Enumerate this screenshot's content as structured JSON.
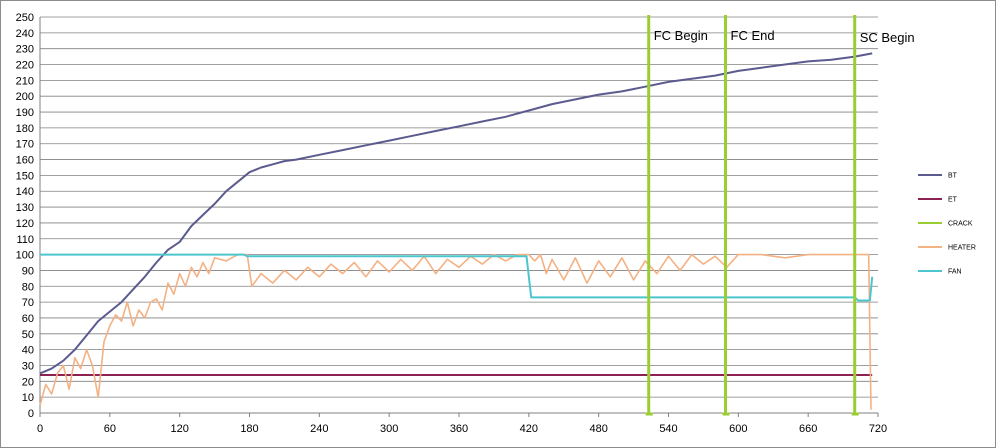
{
  "chart_data": {
    "type": "line",
    "xlim": [
      0,
      720
    ],
    "ylim": [
      0,
      250
    ],
    "x_ticks": [
      0,
      60,
      120,
      180,
      240,
      300,
      360,
      420,
      480,
      540,
      600,
      660,
      720
    ],
    "y_ticks": [
      0,
      10,
      20,
      30,
      40,
      50,
      60,
      70,
      80,
      90,
      100,
      110,
      120,
      130,
      140,
      150,
      160,
      170,
      180,
      190,
      200,
      210,
      220,
      230,
      240,
      250
    ],
    "grid": "horizontal",
    "legend_position": "right",
    "series": [
      {
        "name": "BT",
        "color": "#5b5b8f",
        "points": [
          [
            0,
            25
          ],
          [
            10,
            28
          ],
          [
            20,
            33
          ],
          [
            30,
            40
          ],
          [
            40,
            49
          ],
          [
            50,
            58
          ],
          [
            60,
            64
          ],
          [
            70,
            70
          ],
          [
            80,
            78
          ],
          [
            90,
            86
          ],
          [
            100,
            95
          ],
          [
            110,
            103
          ],
          [
            120,
            108
          ],
          [
            130,
            118
          ],
          [
            140,
            125
          ],
          [
            150,
            132
          ],
          [
            160,
            140
          ],
          [
            170,
            146
          ],
          [
            180,
            152
          ],
          [
            190,
            155
          ],
          [
            200,
            157
          ],
          [
            210,
            159
          ],
          [
            220,
            160
          ],
          [
            240,
            163
          ],
          [
            260,
            166
          ],
          [
            280,
            169
          ],
          [
            300,
            172
          ],
          [
            320,
            175
          ],
          [
            340,
            178
          ],
          [
            360,
            181
          ],
          [
            380,
            184
          ],
          [
            400,
            187
          ],
          [
            420,
            191
          ],
          [
            440,
            195
          ],
          [
            460,
            198
          ],
          [
            480,
            201
          ],
          [
            500,
            203
          ],
          [
            520,
            206
          ],
          [
            540,
            209
          ],
          [
            560,
            211
          ],
          [
            580,
            213
          ],
          [
            600,
            216
          ],
          [
            620,
            218
          ],
          [
            640,
            220
          ],
          [
            660,
            222
          ],
          [
            680,
            223
          ],
          [
            700,
            225
          ],
          [
            715,
            227
          ]
        ]
      },
      {
        "name": "ET",
        "color": "#8b2252",
        "points": [
          [
            0,
            24
          ],
          [
            100,
            24
          ],
          [
            200,
            24
          ],
          [
            300,
            24
          ],
          [
            400,
            24
          ],
          [
            500,
            24
          ],
          [
            600,
            24
          ],
          [
            715,
            24
          ]
        ]
      },
      {
        "name": "CRACK",
        "color": "#9acd32",
        "markers": [
          {
            "x": 523,
            "label": "FC Begin"
          },
          {
            "x": 589,
            "label": "FC End"
          },
          {
            "x": 700,
            "label": "SC Begin"
          }
        ]
      },
      {
        "name": "HEATER",
        "color": "#f4b183",
        "points": [
          [
            0,
            5
          ],
          [
            5,
            18
          ],
          [
            10,
            12
          ],
          [
            15,
            25
          ],
          [
            20,
            30
          ],
          [
            25,
            15
          ],
          [
            30,
            35
          ],
          [
            35,
            28
          ],
          [
            40,
            40
          ],
          [
            45,
            30
          ],
          [
            50,
            10
          ],
          [
            55,
            45
          ],
          [
            60,
            55
          ],
          [
            65,
            62
          ],
          [
            70,
            58
          ],
          [
            75,
            70
          ],
          [
            80,
            55
          ],
          [
            85,
            65
          ],
          [
            90,
            60
          ],
          [
            95,
            70
          ],
          [
            100,
            72
          ],
          [
            105,
            65
          ],
          [
            110,
            82
          ],
          [
            115,
            75
          ],
          [
            120,
            88
          ],
          [
            125,
            80
          ],
          [
            130,
            92
          ],
          [
            135,
            86
          ],
          [
            140,
            95
          ],
          [
            145,
            88
          ],
          [
            150,
            98
          ],
          [
            160,
            96
          ],
          [
            170,
            100
          ],
          [
            178,
            100
          ],
          [
            182,
            80
          ],
          [
            190,
            88
          ],
          [
            200,
            82
          ],
          [
            210,
            90
          ],
          [
            220,
            84
          ],
          [
            230,
            92
          ],
          [
            240,
            86
          ],
          [
            250,
            94
          ],
          [
            260,
            88
          ],
          [
            270,
            95
          ],
          [
            280,
            86
          ],
          [
            290,
            96
          ],
          [
            300,
            89
          ],
          [
            310,
            97
          ],
          [
            320,
            90
          ],
          [
            330,
            99
          ],
          [
            340,
            88
          ],
          [
            350,
            97
          ],
          [
            360,
            92
          ],
          [
            370,
            99
          ],
          [
            380,
            94
          ],
          [
            390,
            100
          ],
          [
            400,
            96
          ],
          [
            410,
            100
          ],
          [
            420,
            100
          ],
          [
            425,
            96
          ],
          [
            430,
            100
          ],
          [
            435,
            88
          ],
          [
            440,
            97
          ],
          [
            450,
            84
          ],
          [
            460,
            98
          ],
          [
            470,
            82
          ],
          [
            480,
            96
          ],
          [
            490,
            86
          ],
          [
            500,
            98
          ],
          [
            510,
            84
          ],
          [
            520,
            96
          ],
          [
            530,
            88
          ],
          [
            540,
            99
          ],
          [
            550,
            90
          ],
          [
            560,
            100
          ],
          [
            570,
            94
          ],
          [
            580,
            99
          ],
          [
            590,
            92
          ],
          [
            600,
            100
          ],
          [
            620,
            100
          ],
          [
            640,
            98
          ],
          [
            660,
            100
          ],
          [
            700,
            100
          ],
          [
            712,
            100
          ],
          [
            714,
            2
          ]
        ]
      },
      {
        "name": "FAN",
        "color": "#4bc6cf",
        "points": [
          [
            0,
            100
          ],
          [
            175,
            100
          ],
          [
            178,
            99
          ],
          [
            418,
            99
          ],
          [
            422,
            73
          ],
          [
            530,
            73
          ],
          [
            700,
            73
          ],
          [
            703,
            71
          ],
          [
            713,
            71
          ],
          [
            715,
            86
          ]
        ]
      }
    ]
  }
}
